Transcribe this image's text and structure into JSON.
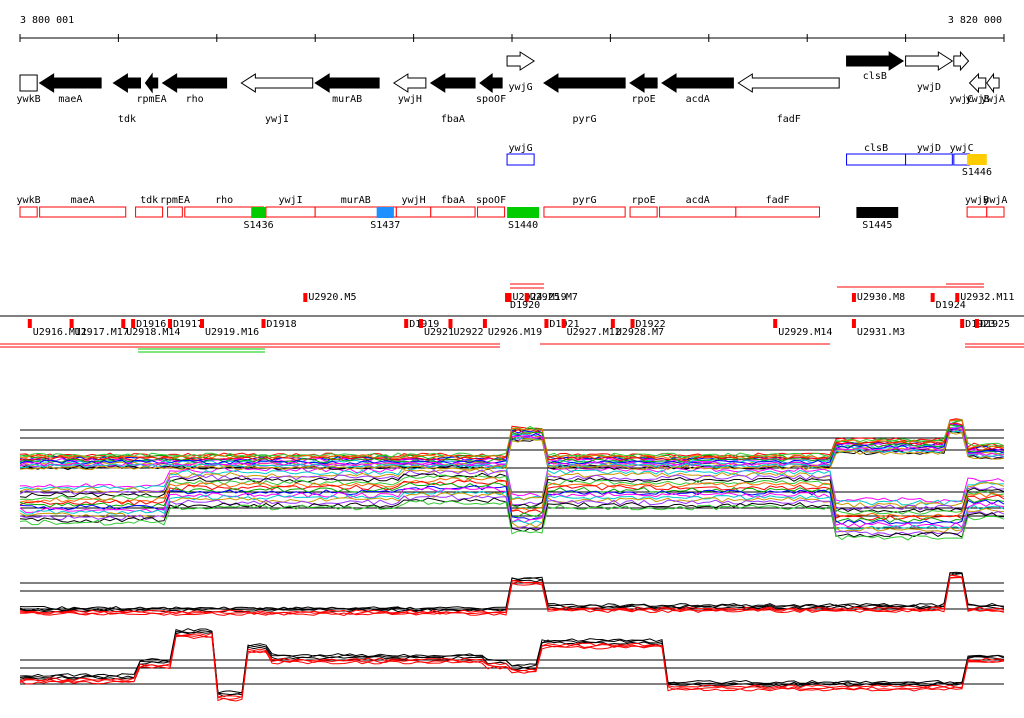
{
  "coordinate_axis": {
    "start_label": "3 800 001",
    "end_label": "3 820 000",
    "start_bp": 3800001,
    "end_bp": 3820000
  },
  "genes": [
    {
      "label": "ywkB",
      "start": 3800001,
      "end": 3800350,
      "strand": "-",
      "fill": "white"
    },
    {
      "label": "maeA",
      "start": 3800400,
      "end": 3801650,
      "strand": "-",
      "fill": "black"
    },
    {
      "label": "tdk",
      "start": 3801900,
      "end": 3802450,
      "strand": "-",
      "fill": "black"
    },
    {
      "label": "rpmEA",
      "start": 3802550,
      "end": 3802800,
      "strand": "-",
      "fill": "black"
    },
    {
      "label": "rho",
      "start": 3802900,
      "end": 3804200,
      "strand": "-",
      "fill": "black"
    },
    {
      "label": "ywjI",
      "start": 3804500,
      "end": 3805950,
      "strand": "-",
      "fill": "white"
    },
    {
      "label": "murAB",
      "start": 3806000,
      "end": 3807300,
      "strand": "-",
      "fill": "black"
    },
    {
      "label": "ywjH",
      "start": 3807600,
      "end": 3808250,
      "strand": "-",
      "fill": "white"
    },
    {
      "label": "fbaA",
      "start": 3808350,
      "end": 3809250,
      "strand": "-",
      "fill": "black"
    },
    {
      "label": "spoOF",
      "start": 3809350,
      "end": 3809800,
      "strand": "-",
      "fill": "black"
    },
    {
      "label": "ywjG",
      "start": 3809900,
      "end": 3810450,
      "strand": "+",
      "fill": "white"
    },
    {
      "label": "pyrG",
      "start": 3810650,
      "end": 3812300,
      "strand": "-",
      "fill": "black"
    },
    {
      "label": "rpoE",
      "start": 3812400,
      "end": 3812950,
      "strand": "-",
      "fill": "black"
    },
    {
      "label": "acdA",
      "start": 3813050,
      "end": 3814500,
      "strand": "-",
      "fill": "black"
    },
    {
      "label": "fadF",
      "start": 3814600,
      "end": 3816650,
      "strand": "-",
      "fill": "white"
    },
    {
      "label": "clsB",
      "start": 3816800,
      "end": 3817950,
      "strand": "+",
      "fill": "black"
    },
    {
      "label": "ywjD",
      "start": 3818000,
      "end": 3818950,
      "strand": "+",
      "fill": "white"
    },
    {
      "label": "ywjC",
      "start": 3818980,
      "end": 3819280,
      "strand": "+",
      "fill": "white"
    },
    {
      "label": "ywjB",
      "start": 3819300,
      "end": 3819630,
      "strand": "-",
      "fill": "white"
    },
    {
      "label": "ywjA",
      "start": 3819650,
      "end": 3819900,
      "strand": "-",
      "fill": "white"
    }
  ],
  "blue_features": [
    {
      "label": "ywjG",
      "start": 3809900,
      "end": 3810450
    },
    {
      "label": "clsB",
      "start": 3816800,
      "end": 3818000
    },
    {
      "label": "ywjD",
      "start": 3818000,
      "end": 3818950
    },
    {
      "label": "ywjC",
      "start": 3818980,
      "end": 3819300
    }
  ],
  "s_features": [
    {
      "label": "S1436",
      "start": 3804700,
      "end": 3805000,
      "color": "#00cc00"
    },
    {
      "label": "S1437",
      "start": 3807250,
      "end": 3807600,
      "color": "#1e90ff"
    },
    {
      "label": "S1440",
      "start": 3809900,
      "end": 3810550,
      "color": "#00cc00"
    },
    {
      "label": "S1445",
      "start": 3817000,
      "end": 3817850,
      "color": "#000000"
    },
    {
      "label": "S1446",
      "start": 3819250,
      "end": 3819650,
      "color": "#ffcc00"
    }
  ],
  "red_genes": [
    {
      "label": "ywkB",
      "start": 3800001,
      "end": 3800350
    },
    {
      "label": "maeA",
      "start": 3800400,
      "end": 3802150
    },
    {
      "label": "tdk",
      "start": 3802350,
      "end": 3802900
    },
    {
      "label": "rpmEA",
      "start": 3803000,
      "end": 3803300
    },
    {
      "label": "rho",
      "start": 3803350,
      "end": 3804950
    },
    {
      "label": "ywjI",
      "start": 3805000,
      "end": 3806000
    },
    {
      "label": "murAB",
      "start": 3806000,
      "end": 3807650
    },
    {
      "label": "ywjH",
      "start": 3807650,
      "end": 3808350
    },
    {
      "label": "fbaA",
      "start": 3808350,
      "end": 3809250
    },
    {
      "label": "spoOF",
      "start": 3809300,
      "end": 3809850
    },
    {
      "label": "pyrG",
      "start": 3810650,
      "end": 3812300
    },
    {
      "label": "rpoE",
      "start": 3812400,
      "end": 3812950
    },
    {
      "label": "acdA",
      "start": 3813000,
      "end": 3814550
    },
    {
      "label": "fadF",
      "start": 3814550,
      "end": 3816250
    },
    {
      "label": "ywjB",
      "start": 3819250,
      "end": 3819650
    },
    {
      "label": "ywjA",
      "start": 3819650,
      "end": 3820000
    }
  ],
  "transcripts_upper": [
    {
      "label": "U2920.M5",
      "start": 3805800
    },
    {
      "label": "U2924.M19",
      "start": 3809950
    },
    {
      "label": "U2925.M7",
      "start": 3810300
    },
    {
      "label": "D1920",
      "start": 3809900
    },
    {
      "label": "U2930.M8",
      "start": 3816950
    },
    {
      "label": "D1924",
      "start": 3818550
    },
    {
      "label": "U2932.M11",
      "start": 3819050
    }
  ],
  "transcripts_lower": [
    {
      "label": "D1916",
      "start": 3802300
    },
    {
      "label": "D1917",
      "start": 3803050
    },
    {
      "label": "D1918",
      "start": 3804950
    },
    {
      "label": "D1919",
      "start": 3807850
    },
    {
      "label": "D1921",
      "start": 3810700
    },
    {
      "label": "D1922",
      "start": 3812450
    },
    {
      "label": "D1923",
      "start": 3819150
    },
    {
      "label": "D1925",
      "start": 3819450
    },
    {
      "label": "U2916.M11",
      "start": 3800200
    },
    {
      "label": "U2917.M17",
      "start": 3801050
    },
    {
      "label": "U2918.M14",
      "start": 3802100
    },
    {
      "label": "U2919.M16",
      "start": 3803700
    },
    {
      "label": "U2921",
      "start": 3808150
    },
    {
      "label": "U2922",
      "start": 3808750
    },
    {
      "label": "U2926.M19",
      "start": 3809450
    },
    {
      "label": "U2927.M12",
      "start": 3811050
    },
    {
      "label": "U2928.M7",
      "start": 3812050
    },
    {
      "label": "U2929.M14",
      "start": 3815350
    },
    {
      "label": "U2931.M3",
      "start": 3816950
    }
  ],
  "colors": {
    "red": "#ff0000",
    "blue": "#0000ff",
    "green": "#00cc00",
    "black": "#000000"
  }
}
